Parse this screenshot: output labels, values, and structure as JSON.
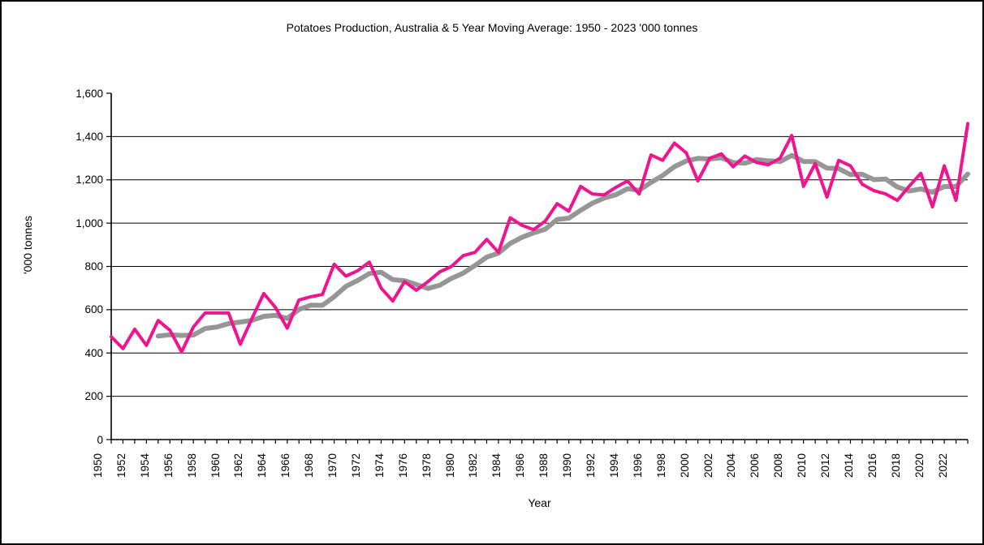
{
  "chart_data": {
    "type": "line",
    "title": "Potatoes Production, Australia & 5 Year Moving Average: 1950 - 2023 '000 tonnes",
    "xlabel": "Year",
    "ylabel": "'000 tonnes",
    "ylim": [
      0,
      1600
    ],
    "ytick_step": 200,
    "ytick_labels": [
      "0",
      "200",
      "400",
      "600",
      "800",
      "1,000",
      "1,200",
      "1,400",
      "1,600"
    ],
    "grid": "horizontal",
    "legend": "none",
    "x_start_year": 1950,
    "x_end_year": 2023,
    "xtick_label_years": [
      "1950",
      "1952",
      "1954",
      "1956",
      "1958",
      "1960",
      "1962",
      "1964",
      "1966",
      "1968",
      "1970",
      "1972",
      "1974",
      "1976",
      "1978",
      "1980",
      "1982",
      "1984",
      "1986",
      "1988",
      "1990",
      "1992",
      "1994",
      "1996",
      "1998",
      "2000",
      "2002",
      "2004",
      "2006",
      "2008",
      "2010",
      "2012",
      "2014",
      "2016",
      "2018",
      "2020",
      "2022"
    ],
    "series": [
      {
        "name": "Potatoes Production ('000 tonnes)",
        "color": "#F0148F",
        "stroke_width": 4,
        "start_year": 1950,
        "values": [
          475,
          420,
          510,
          435,
          550,
          505,
          405,
          520,
          585,
          585,
          585,
          440,
          560,
          675,
          610,
          515,
          645,
          660,
          670,
          810,
          755,
          780,
          820,
          700,
          640,
          730,
          690,
          730,
          775,
          800,
          850,
          865,
          925,
          865,
          1025,
          990,
          970,
          1010,
          1090,
          1055,
          1170,
          1135,
          1130,
          1165,
          1195,
          1135,
          1315,
          1290,
          1370,
          1325,
          1195,
          1300,
          1320,
          1260,
          1310,
          1280,
          1270,
          1300,
          1405,
          1170,
          1275,
          1120,
          1290,
          1265,
          1180,
          1150,
          1135,
          1105,
          1170,
          1230,
          1075,
          1265,
          1105,
          1460
        ]
      },
      {
        "name": "5 Year Moving Average",
        "color": "#969696",
        "stroke_width": 6,
        "start_year": 1954,
        "values": [
          478,
          484,
          481,
          483,
          513,
          520,
          536,
          543,
          551,
          569,
          574,
          560,
          601,
          621,
          620,
          660,
          708,
          735,
          767,
          773,
          739,
          734,
          716,
          698,
          713,
          745,
          769,
          804,
          843,
          861,
          906,
          934,
          955,
          972,
          1017,
          1023,
          1059,
          1092,
          1116,
          1131,
          1159,
          1152,
          1188,
          1220,
          1261,
          1287,
          1299,
          1296,
          1302,
          1280,
          1277,
          1294,
          1288,
          1284,
          1313,
          1285,
          1284,
          1254,
          1252,
          1224,
          1226,
          1201,
          1204,
          1167,
          1148,
          1158,
          1143,
          1169,
          1169,
          1227
        ]
      }
    ],
    "axis_color": "#000000",
    "gridline_color": "#000000"
  }
}
